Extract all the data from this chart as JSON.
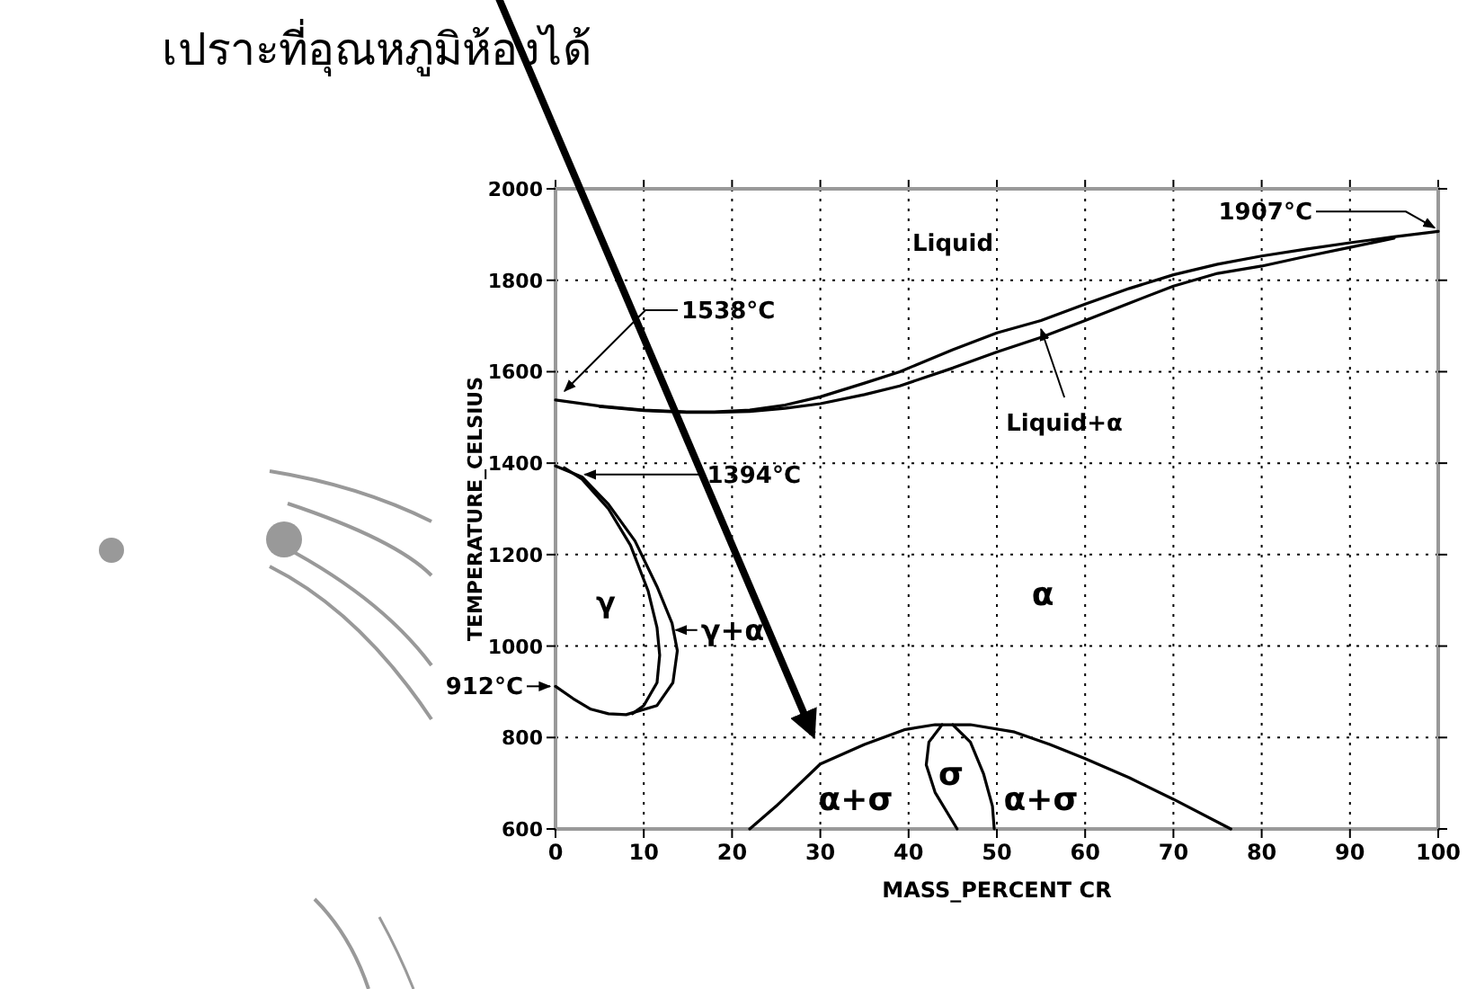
{
  "chart_data": {
    "type": "line",
    "title": "เปราะที่อุณหภูมิห้องได้",
    "xlabel": "MASS_PERCENT CR",
    "ylabel": "TEMPERATURE_CELSIUS",
    "xlim": [
      0,
      100
    ],
    "ylim": [
      600,
      2000
    ],
    "xticks": [
      0,
      10,
      20,
      30,
      40,
      50,
      60,
      70,
      80,
      90,
      100
    ],
    "yticks": [
      600,
      800,
      1000,
      1200,
      1400,
      1600,
      1800,
      2000
    ],
    "grid": true,
    "marker": "none",
    "line_style": "solid",
    "series": [
      {
        "color": "#000000",
        "x": [
          0,
          5,
          10,
          15,
          18,
          22,
          26,
          30,
          35,
          39,
          45,
          50,
          55,
          60,
          65,
          70,
          75,
          80,
          85,
          90,
          95,
          100
        ],
        "values": [
          1538,
          1525,
          1516,
          1512,
          1512,
          1516,
          1527,
          1545,
          1575,
          1600,
          1648,
          1685,
          1712,
          1748,
          1782,
          1812,
          1835,
          1853,
          1868,
          1882,
          1895,
          1907
        ]
      },
      {
        "color": "#000000",
        "x": [
          5,
          10,
          15,
          18,
          22,
          26,
          30,
          35,
          39,
          45,
          50,
          55,
          60,
          65,
          70,
          75,
          80,
          85,
          90,
          95
        ],
        "values": [
          1524,
          1515,
          1511,
          1511,
          1513,
          1520,
          1530,
          1550,
          1569,
          1608,
          1643,
          1675,
          1712,
          1750,
          1787,
          1815,
          1831,
          1852,
          1872,
          1892
        ]
      },
      {
        "color": "#000000",
        "x": [
          0,
          3,
          6,
          9,
          11.5,
          13.2,
          13.8,
          13.3,
          11.5,
          8,
          6,
          4,
          2,
          0
        ],
        "values": [
          1394,
          1370,
          1310,
          1230,
          1130,
          1050,
          990,
          920,
          870,
          850,
          852,
          862,
          885,
          912
        ]
      },
      {
        "color": "#000000",
        "x": [
          1,
          3,
          6,
          8.5,
          10.5,
          11.5,
          11.8,
          11.5,
          10,
          8.7
        ],
        "values": [
          1390,
          1365,
          1300,
          1220,
          1120,
          1040,
          980,
          920,
          870,
          852
        ]
      },
      {
        "color": "#000000",
        "x": [
          22,
          25,
          30,
          35,
          39.5,
          43,
          47,
          52,
          56,
          60,
          65,
          70,
          76.5
        ],
        "values": [
          600,
          650,
          742,
          785,
          817,
          828,
          828,
          812,
          785,
          754,
          712,
          665,
          600
        ]
      },
      {
        "color": "#000000",
        "x": [
          43.8,
          42.3,
          42,
          43,
          45.5
        ],
        "values": [
          828,
          790,
          740,
          680,
          600
        ]
      },
      {
        "color": "#000000",
        "x": [
          45,
          47,
          48.5,
          49.5,
          49.7
        ],
        "values": [
          828,
          790,
          720,
          650,
          600
        ]
      }
    ],
    "annotations": [
      {
        "text": "1538°C",
        "x": 0,
        "y": 1538
      },
      {
        "text": "1907°C",
        "x": 100,
        "y": 1907
      },
      {
        "text": "1394°C",
        "x": 2.5,
        "y": 1375
      },
      {
        "text": "912°C",
        "x": 0,
        "y": 912
      },
      "Liquid",
      {
        "text": "Liquid+α",
        "x": 55,
        "y": 1705
      },
      "γ",
      {
        "text": "γ+α",
        "x": 12.8,
        "y": 1035
      },
      "α",
      "α+σ",
      "σ",
      "α+σ"
    ]
  }
}
